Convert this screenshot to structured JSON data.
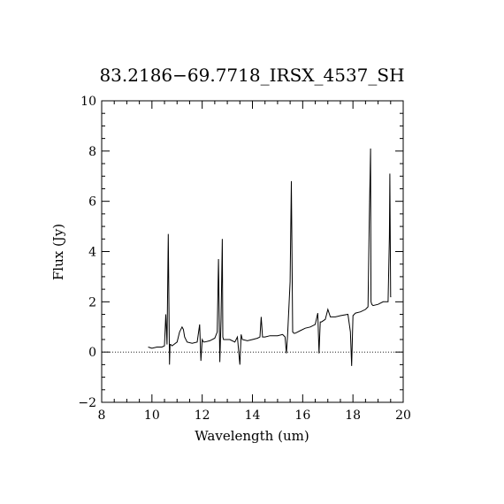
{
  "chart_data": {
    "type": "line",
    "title": "83.2186−69.7718_IRSX_4537_SH",
    "xlabel": "Wavelength (um)",
    "ylabel": "Flux (Jy)",
    "xlim": [
      8,
      20
    ],
    "ylim": [
      -2,
      10
    ],
    "xticks": [
      8,
      10,
      12,
      14,
      16,
      18,
      20
    ],
    "xtick_labels": [
      "8",
      "10",
      "12",
      "14",
      "16",
      "18",
      "20"
    ],
    "yticks": [
      -2,
      0,
      2,
      4,
      6,
      8,
      10
    ],
    "ytick_labels": [
      "−2",
      "0",
      "2",
      "4",
      "6",
      "8",
      "10"
    ],
    "zero_line": "dotted",
    "grid": false,
    "series": [
      {
        "x": [
          9.85,
          10.0,
          10.2,
          10.4,
          10.5,
          10.55,
          10.6,
          10.65,
          10.7,
          10.72,
          10.75,
          10.8,
          11.0,
          11.1,
          11.2,
          11.25,
          11.3,
          11.4,
          11.6,
          11.8,
          11.9,
          11.95,
          12.0,
          12.05,
          12.1,
          12.3,
          12.5,
          12.6,
          12.65,
          12.7,
          12.75,
          12.8,
          12.82,
          12.85,
          12.9,
          13.1,
          13.3,
          13.4,
          13.5,
          13.55,
          13.6,
          13.8,
          14.0,
          14.2,
          14.3,
          14.35,
          14.4,
          14.5,
          14.7,
          15.0,
          15.2,
          15.3,
          15.35,
          15.4,
          15.5,
          15.55,
          15.6,
          15.65,
          15.7,
          15.9,
          16.1,
          16.3,
          16.5,
          16.6,
          16.65,
          16.7,
          16.75,
          16.9,
          17.0,
          17.1,
          17.3,
          17.5,
          17.8,
          17.9,
          17.95,
          18.0,
          18.05,
          18.1,
          18.3,
          18.5,
          18.6,
          18.65,
          18.7,
          18.71,
          18.72,
          18.75,
          18.8,
          19.0,
          19.2,
          19.3,
          19.4,
          19.45,
          19.47,
          19.5,
          19.52
        ],
        "y": [
          0.2,
          0.15,
          0.2,
          0.2,
          0.25,
          1.5,
          0.3,
          4.7,
          -0.5,
          0.3,
          0.3,
          0.25,
          0.4,
          0.8,
          1.0,
          0.9,
          0.6,
          0.4,
          0.35,
          0.4,
          1.1,
          -0.35,
          0.5,
          0.4,
          0.4,
          0.45,
          0.55,
          0.8,
          3.7,
          -0.4,
          1.3,
          4.5,
          0.6,
          0.5,
          0.5,
          0.5,
          0.4,
          0.6,
          -0.5,
          0.7,
          0.5,
          0.45,
          0.5,
          0.55,
          0.6,
          1.4,
          0.6,
          0.6,
          0.65,
          0.65,
          0.7,
          0.6,
          -0.05,
          0.7,
          2.8,
          6.8,
          0.8,
          0.75,
          0.75,
          0.85,
          0.95,
          1.0,
          1.1,
          1.55,
          -0.05,
          1.2,
          1.2,
          1.3,
          1.7,
          1.4,
          1.4,
          1.45,
          1.5,
          0.8,
          -0.55,
          1.45,
          1.5,
          1.55,
          1.6,
          1.7,
          1.8,
          5.2,
          8.1,
          5.2,
          2.0,
          1.9,
          1.85,
          1.9,
          2.0,
          2.0,
          2.0,
          4.6,
          7.1,
          2.2,
          2.2
        ]
      }
    ]
  }
}
